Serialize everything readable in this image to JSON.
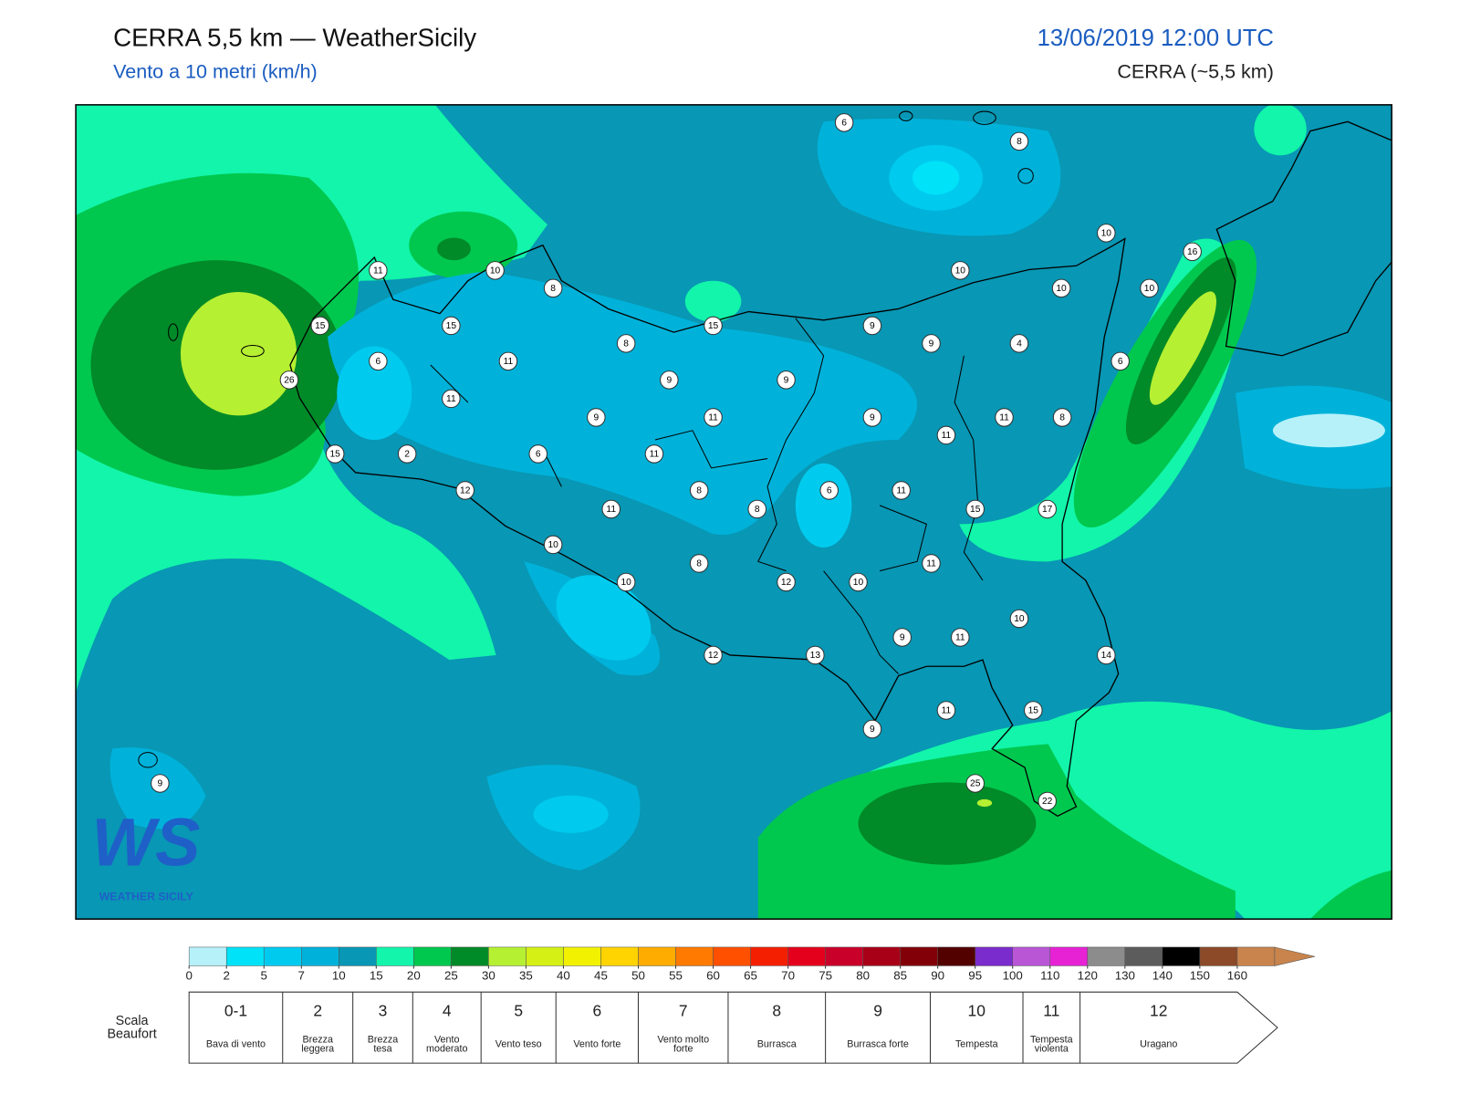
{
  "header": {
    "title": "CERRA 5,5 km — WeatherSicily",
    "subtitle": "Vento a 10 metri (km/h)",
    "datetime": "13/06/2019 12:00 UTC",
    "model": "CERRA (~5,5 km)"
  },
  "logo": {
    "mark": "WS",
    "name": "WEATHER SICILY"
  },
  "stations": [
    6,
    8,
    10,
    16,
    11,
    10,
    8,
    10,
    10,
    10,
    15,
    15,
    15,
    9,
    9,
    4,
    8,
    6,
    11,
    6,
    26,
    9,
    9,
    11,
    9,
    11,
    9,
    11,
    8,
    11,
    15,
    2,
    6,
    11,
    12,
    8,
    6,
    11,
    11,
    8,
    15,
    17,
    10,
    8,
    11,
    10,
    12,
    10,
    10,
    9,
    11,
    12,
    13,
    14,
    11,
    15,
    9,
    9,
    25,
    22
  ],
  "colorbar": {
    "levels": [
      0,
      2,
      5,
      7,
      10,
      15,
      20,
      25,
      30,
      35,
      40,
      45,
      50,
      55,
      60,
      65,
      70,
      75,
      80,
      85,
      90,
      95,
      100,
      110,
      120,
      130,
      140,
      150,
      160
    ],
    "colors": [
      "#b6f1fa",
      "#00e2f8",
      "#00cbef",
      "#00b2da",
      "#0897b4",
      "#12f5aa",
      "#00c84e",
      "#008a28",
      "#b6f032",
      "#d4f014",
      "#f2f200",
      "#ffd400",
      "#ffac00",
      "#ff7a00",
      "#ff5000",
      "#f41e00",
      "#e4001c",
      "#c8002a",
      "#a80016",
      "#820008",
      "#520000",
      "#7a2ccc",
      "#b856d6",
      "#e622d4",
      "#8c8c8c",
      "#5c5c5c",
      "#000000",
      "#8c4a28",
      "#c8844c"
    ]
  },
  "beaufort": {
    "title": "Scala Beaufort",
    "forces": [
      {
        "force": "0-1",
        "label": "Bava di vento"
      },
      {
        "force": "2",
        "label": "Brezza leggera"
      },
      {
        "force": "3",
        "label": "Brezza tesa"
      },
      {
        "force": "4",
        "label": "Vento moderato"
      },
      {
        "force": "5",
        "label": "Vento teso"
      },
      {
        "force": "6",
        "label": "Vento forte"
      },
      {
        "force": "7",
        "label": "Vento molto forte"
      },
      {
        "force": "8",
        "label": "Burrasca"
      },
      {
        "force": "9",
        "label": "Burrasca forte"
      },
      {
        "force": "10",
        "label": "Tempesta"
      },
      {
        "force": "11",
        "label": "Tempesta violenta"
      },
      {
        "force": "12",
        "label": "Uragano"
      }
    ]
  }
}
